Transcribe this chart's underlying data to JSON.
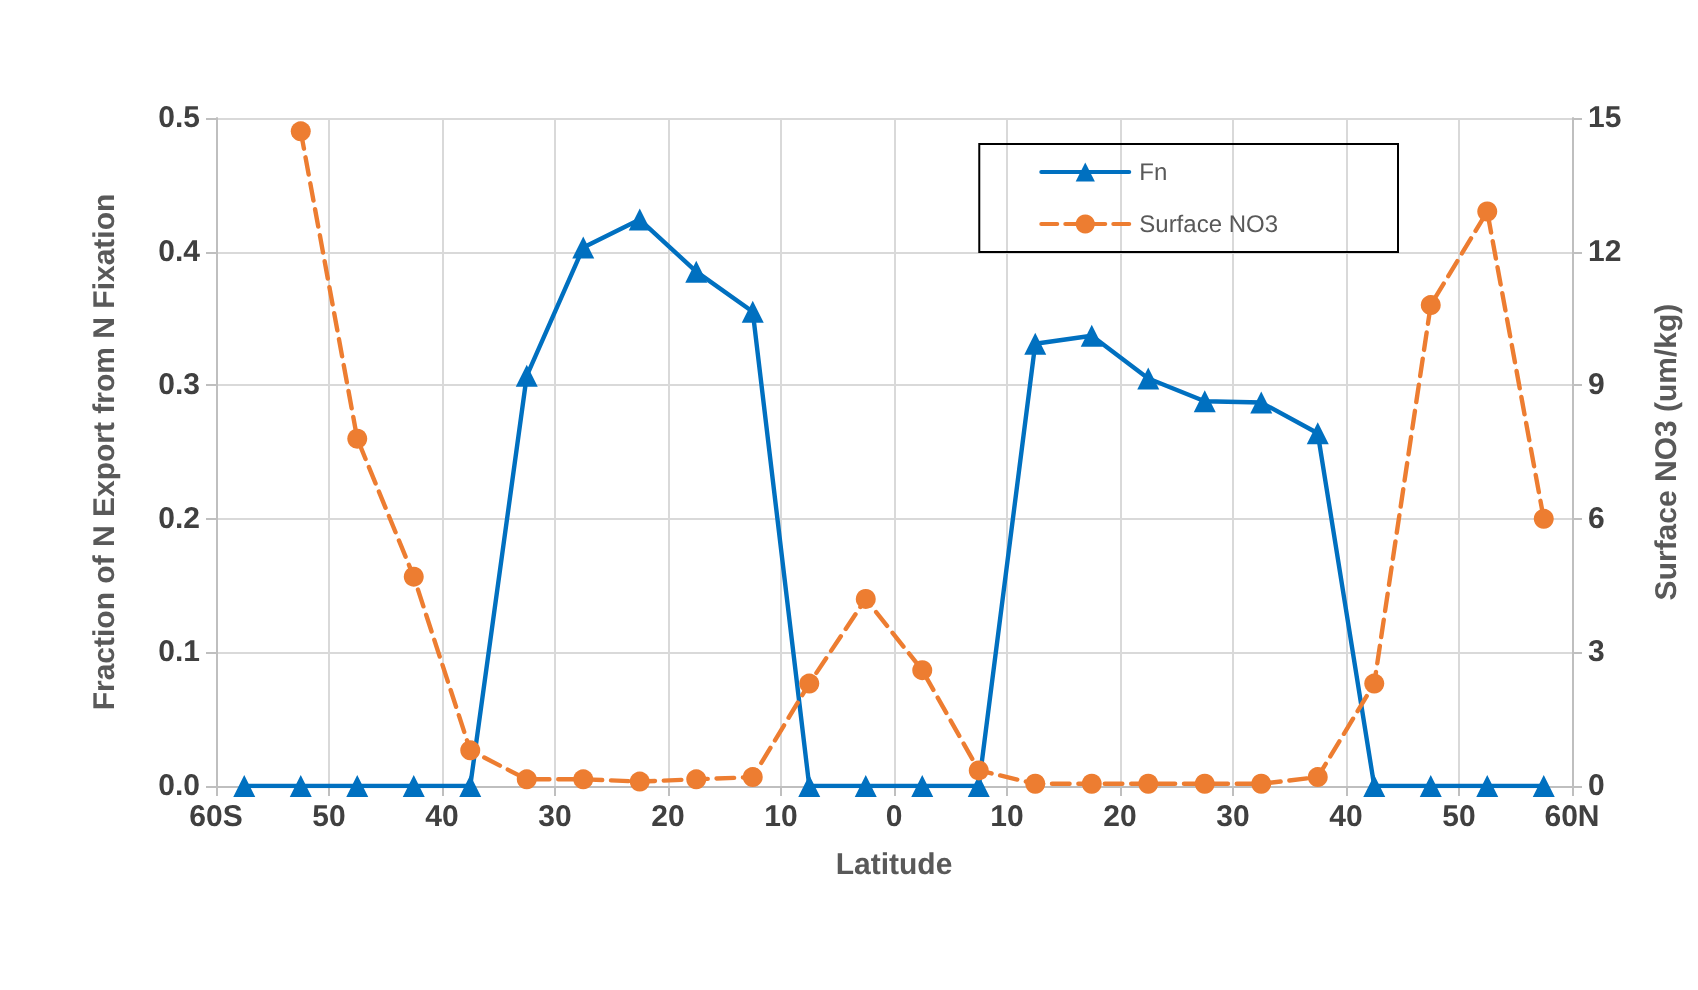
{
  "chart_data": {
    "type": "line",
    "xlabel": "Latitude",
    "ylabel": "Fraction of N Export from N Fixation",
    "y2label": "Surface NO3 (um/kg)",
    "x": [
      -57.5,
      -52.5,
      -47.5,
      -42.5,
      -37.5,
      -32.5,
      -27.5,
      -22.5,
      -17.5,
      -12.5,
      -7.5,
      -2.5,
      2.5,
      7.5,
      12.5,
      17.5,
      22.5,
      27.5,
      32.5,
      37.5,
      42.5,
      47.5,
      52.5,
      57.5
    ],
    "series": [
      {
        "name": "Fn",
        "color": "#0070c0",
        "marker": "triangle",
        "line_style": "solid",
        "values": [
          0,
          0,
          0,
          0,
          0,
          0.307,
          0.403,
          0.424,
          0.385,
          0.355,
          0,
          0,
          0,
          0,
          0.331,
          0.337,
          0.305,
          0.288,
          0.287,
          0.264,
          0,
          0,
          0,
          0
        ]
      },
      {
        "name": "Surface NO3",
        "color": "#ed7d31",
        "marker": "circle",
        "line_style": "dashed",
        "axis": "y2",
        "values": [
          null,
          14.7,
          7.8,
          4.7,
          0.8,
          0.15,
          0.15,
          0.1,
          0.15,
          0.2,
          2.3,
          4.2,
          2.6,
          0.35,
          0.05,
          0.05,
          0.05,
          0.05,
          0.05,
          0.2,
          2.3,
          10.8,
          12.9,
          6.0
        ]
      }
    ],
    "xlim": [
      -60,
      60
    ],
    "xticks": [
      {
        "value": -60,
        "label": "60S"
      },
      {
        "value": -50,
        "label": "50"
      },
      {
        "value": -40,
        "label": "40"
      },
      {
        "value": -30,
        "label": "30"
      },
      {
        "value": -20,
        "label": "20"
      },
      {
        "value": -10,
        "label": "10"
      },
      {
        "value": 0,
        "label": "0"
      },
      {
        "value": 10,
        "label": "10"
      },
      {
        "value": 20,
        "label": "20"
      },
      {
        "value": 30,
        "label": "30"
      },
      {
        "value": 40,
        "label": "40"
      },
      {
        "value": 50,
        "label": "50"
      },
      {
        "value": 60,
        "label": "60N"
      }
    ],
    "ylim": [
      0,
      0.5
    ],
    "yticks": [
      {
        "value": 0,
        "label": "0.0"
      },
      0.1,
      0.2,
      0.3,
      0.4,
      0.5
    ],
    "y2lim": [
      0,
      15
    ],
    "y2ticks": [
      0,
      3,
      6,
      9,
      12,
      15
    ],
    "grid": true,
    "legend": "top right"
  }
}
